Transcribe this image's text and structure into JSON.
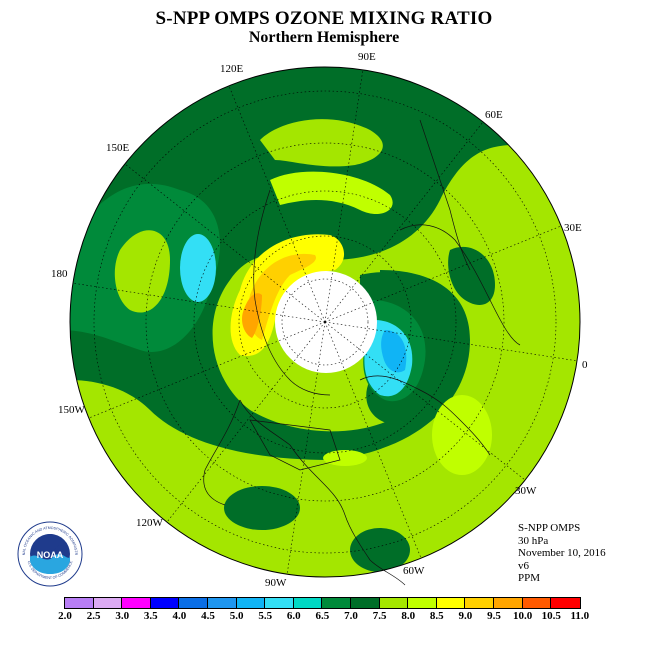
{
  "header": {
    "title": "S-NPP OMPS OZONE MIXING RATIO",
    "subtitle": "Northern Hemisphere"
  },
  "map": {
    "projection": "north-polar-stereographic",
    "longitude_labels": [
      "0",
      "30E",
      "60E",
      "90E",
      "120E",
      "150E",
      "180",
      "150W",
      "120W",
      "90W",
      "60W",
      "30W"
    ],
    "missing_data_color": "#ffffff"
  },
  "info": {
    "instrument": "S-NPP OMPS",
    "level": "30 hPa",
    "date": "November 10, 2016",
    "version": "v6",
    "units": "PPM"
  },
  "colorbar": {
    "ticks": [
      "2.0",
      "2.5",
      "3.0",
      "3.5",
      "4.0",
      "4.5",
      "5.0",
      "5.5",
      "6.0",
      "6.5",
      "7.0",
      "7.5",
      "8.0",
      "8.5",
      "9.0",
      "9.5",
      "10.0",
      "10.5",
      "11.0"
    ],
    "colors": [
      "#b87ef5",
      "#dcaaf3",
      "#ff00ff",
      "#0000ff",
      "#0a6ee6",
      "#1e96f0",
      "#10b4f5",
      "#33dff5",
      "#00d8c4",
      "#008a3a",
      "#006e28",
      "#a4e600",
      "#c0ff00",
      "#ffff00",
      "#ffd000",
      "#ffa500",
      "#ff5a00",
      "#ff0000",
      "#8b4513"
    ]
  },
  "logo": {
    "text": "NOAA",
    "ring_text": "NATIONAL OCEANIC AND ATMOSPHERIC ADMINISTRATION",
    "ring_text_bottom": "U.S. DEPARTMENT OF COMMERCE"
  }
}
